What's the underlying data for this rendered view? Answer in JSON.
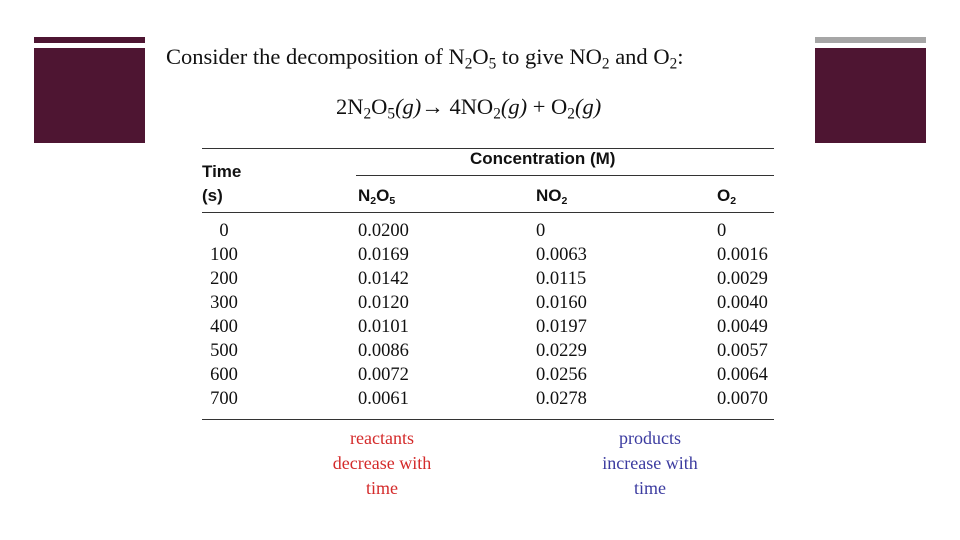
{
  "slide": {
    "colors": {
      "accent_block": "#4e1532",
      "bar_left": "#4e1532",
      "bar_right": "#a6a6a6",
      "reactants_note": "#d42a2a",
      "products_note": "#3b3ba0"
    },
    "title": {
      "before": "Consider the decomposition of ",
      "n2o5_n": "N",
      "n2o5_sub1": "2",
      "n2o5_o": "O",
      "n2o5_sub2": "5",
      "middle": " to give ",
      "no2_no": "NO",
      "no2_sub": "2",
      "and": " and ",
      "o2_o": "O",
      "o2_sub": "2",
      "end": ":"
    },
    "equation": {
      "coef1": "2N",
      "s1": "2",
      "o1": "O",
      "s2": "5",
      "g1": "(g)",
      "arrow": "→ 4NO",
      "s3": "2",
      "g2": "(g)",
      "plus": " + O",
      "s4": "2",
      "g3": "(g)"
    },
    "table": {
      "time_header_1": "Time",
      "time_header_2": "(s)",
      "concentration_header": "Concentration (M)",
      "col_n2o5": {
        "main": "N",
        "sub1": "2",
        "mid": "O",
        "sub2": "5"
      },
      "col_no2": {
        "main": "NO",
        "sub": "2"
      },
      "col_o2": {
        "main": "O",
        "sub": "2"
      },
      "rows": [
        {
          "time": "0",
          "n2o5": "0.0200",
          "no2": "0",
          "o2": "0"
        },
        {
          "time": "100",
          "n2o5": "0.0169",
          "no2": "0.0063",
          "o2": "0.0016"
        },
        {
          "time": "200",
          "n2o5": "0.0142",
          "no2": "0.0115",
          "o2": "0.0029"
        },
        {
          "time": "300",
          "n2o5": "0.0120",
          "no2": "0.0160",
          "o2": "0.0040"
        },
        {
          "time": "400",
          "n2o5": "0.0101",
          "no2": "0.0197",
          "o2": "0.0049"
        },
        {
          "time": "500",
          "n2o5": "0.0086",
          "no2": "0.0229",
          "o2": "0.0057"
        },
        {
          "time": "600",
          "n2o5": "0.0072",
          "no2": "0.0256",
          "o2": "0.0064"
        },
        {
          "time": "700",
          "n2o5": "0.0061",
          "no2": "0.0278",
          "o2": "0.0070"
        }
      ]
    },
    "notes": {
      "reactants": [
        "reactants",
        "decrease with",
        "time"
      ],
      "products": [
        "products",
        "increase with",
        "time"
      ]
    }
  }
}
